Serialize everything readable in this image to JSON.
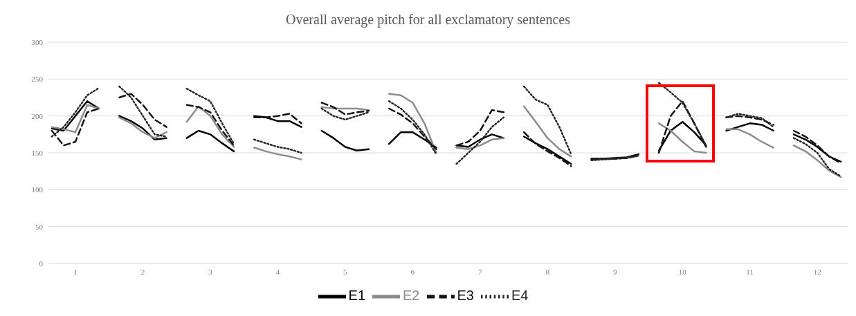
{
  "chart_data": {
    "type": "line",
    "title": "Overall average pitch for all exclamatory sentences",
    "x": [
      0.65,
      0.825,
      1,
      1.175,
      1.35,
      1.5,
      1.65,
      1.825,
      2,
      2.175,
      2.35,
      2.5,
      2.65,
      2.825,
      3,
      3.175,
      3.35,
      3.5,
      3.65,
      3.825,
      4,
      4.175,
      4.35,
      4.5,
      4.65,
      4.825,
      5,
      5.175,
      5.35,
      5.5,
      5.65,
      5.825,
      6,
      6.175,
      6.35,
      6.5,
      6.65,
      6.825,
      7,
      7.175,
      7.35,
      7.5,
      7.65,
      7.825,
      8,
      8.175,
      8.35,
      8.5,
      8.65,
      8.825,
      9,
      9.175,
      9.35,
      9.5,
      9.65,
      9.825,
      10,
      10.175,
      10.35,
      10.5,
      10.65,
      10.825,
      11,
      11.175,
      11.35,
      11.5,
      11.65,
      11.825,
      12,
      12.175,
      12.35
    ],
    "series": [
      {
        "name": "E1",
        "color": "#000000",
        "line_style": "solid",
        "values": [
          183,
          180,
          200,
          220,
          210,
          null,
          200,
          193,
          183,
          168,
          170,
          null,
          170,
          180,
          175,
          163,
          152,
          null,
          200,
          198,
          193,
          193,
          185,
          null,
          180,
          170,
          158,
          153,
          155,
          null,
          162,
          178,
          178,
          168,
          157,
          null,
          160,
          158,
          168,
          175,
          170,
          null,
          172,
          163,
          155,
          145,
          135,
          null,
          142,
          142,
          143,
          144,
          148,
          null,
          153,
          180,
          192,
          178,
          160,
          null,
          180,
          185,
          190,
          188,
          180,
          null,
          175,
          168,
          158,
          145,
          138
        ]
      },
      {
        "name": "E2",
        "color": "#8c8c8c",
        "line_style": "solid",
        "values": [
          185,
          182,
          178,
          215,
          210,
          null,
          198,
          190,
          178,
          170,
          178,
          null,
          192,
          213,
          200,
          175,
          158,
          null,
          157,
          152,
          148,
          145,
          141,
          null,
          212,
          210,
          210,
          210,
          208,
          null,
          230,
          228,
          218,
          190,
          150,
          null,
          157,
          155,
          160,
          168,
          170,
          null,
          213,
          192,
          170,
          155,
          145,
          null,
          140,
          141,
          142,
          143,
          146,
          null,
          190,
          180,
          165,
          152,
          150,
          null,
          182,
          182,
          175,
          165,
          157,
          null,
          160,
          152,
          140,
          126,
          117
        ]
      },
      {
        "name": "E3",
        "color": "#141414",
        "line_style": "dashed",
        "values": [
          180,
          160,
          165,
          205,
          210,
          null,
          225,
          230,
          215,
          195,
          185,
          null,
          215,
          212,
          205,
          180,
          160,
          null,
          198,
          198,
          200,
          203,
          190,
          null,
          218,
          212,
          202,
          205,
          207,
          null,
          210,
          202,
          190,
          172,
          155,
          null,
          160,
          165,
          180,
          208,
          205,
          null,
          178,
          162,
          152,
          143,
          132,
          null,
          141,
          142,
          142,
          143,
          147,
          null,
          150,
          200,
          220,
          190,
          158,
          null,
          198,
          200,
          198,
          195,
          188,
          null,
          180,
          172,
          160,
          145,
          136
        ]
      },
      {
        "name": "E4",
        "color": "#262626",
        "line_style": "dotted",
        "values": [
          172,
          185,
          205,
          228,
          238,
          null,
          240,
          225,
          200,
          175,
          172,
          null,
          237,
          228,
          220,
          190,
          162,
          null,
          168,
          163,
          158,
          155,
          150,
          null,
          210,
          200,
          195,
          200,
          205,
          null,
          220,
          210,
          195,
          175,
          148,
          null,
          135,
          150,
          165,
          185,
          198,
          null,
          240,
          222,
          215,
          185,
          148,
          null,
          140,
          141,
          142,
          143,
          146,
          null,
          245,
          232,
          218,
          190,
          160,
          null,
          198,
          203,
          200,
          197,
          185,
          null,
          170,
          162,
          150,
          128,
          118
        ]
      }
    ],
    "xlim": [
      0.6,
      12.45
    ],
    "xticks": [
      1,
      2,
      3,
      4,
      5,
      6,
      7,
      8,
      9,
      10,
      11,
      12
    ],
    "ylim": [
      0,
      300
    ],
    "yticks": [
      0,
      50,
      100,
      150,
      200,
      250,
      300
    ],
    "grid": "y",
    "legend": "bottom",
    "marker": "none"
  }
}
